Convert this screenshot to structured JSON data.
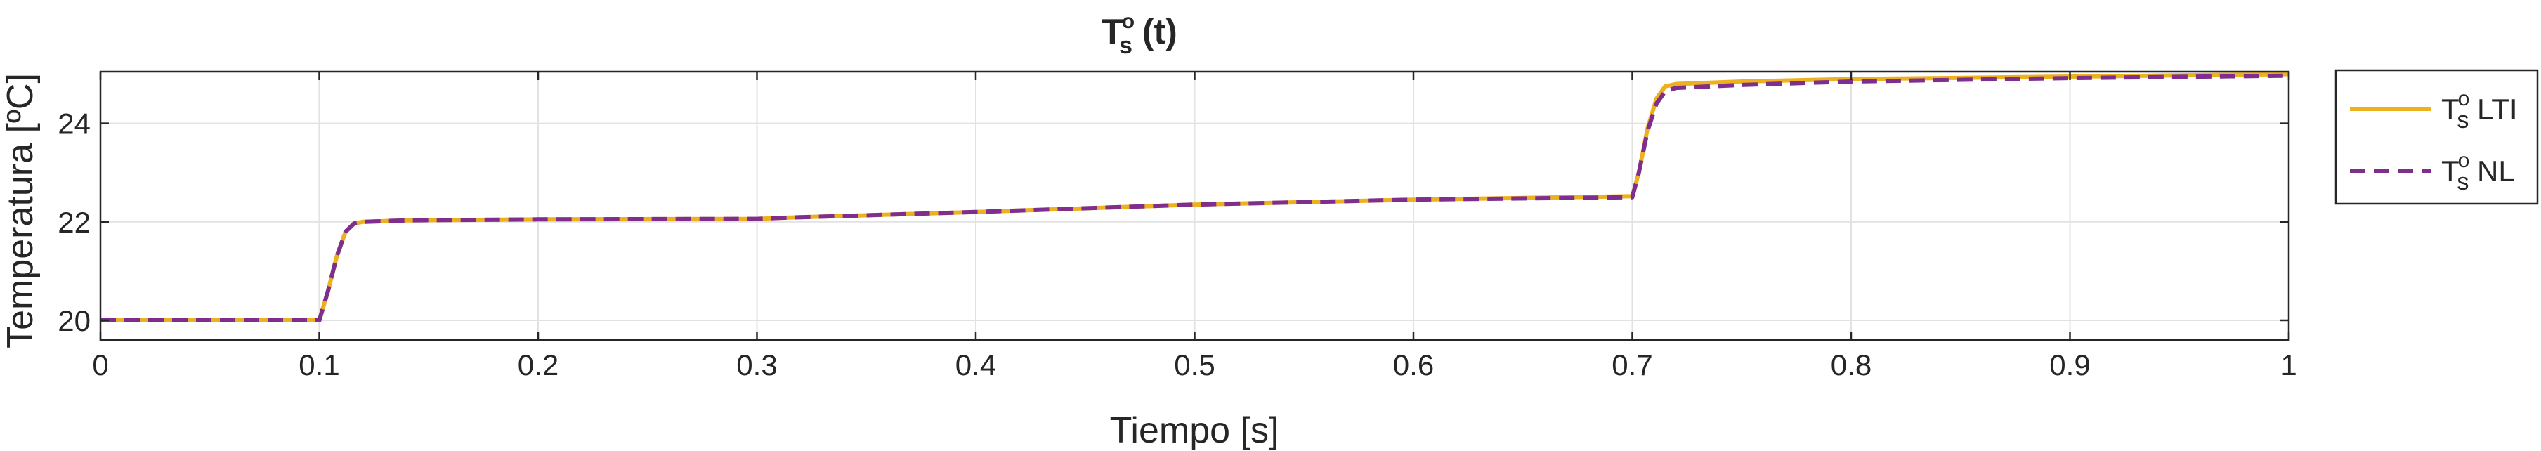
{
  "chart_data": {
    "type": "line",
    "title": {
      "base": "T",
      "sup": "o",
      "sub": "s",
      "rest": " (t)"
    },
    "xlabel": "Tiempo [s]",
    "ylabel": "Temperatura [ºC]",
    "xlim": [
      0,
      1
    ],
    "ylim": [
      19.6,
      25.05
    ],
    "xticks": [
      0,
      0.1,
      0.2,
      0.3,
      0.4,
      0.5,
      0.6,
      0.7,
      0.8,
      0.9,
      1
    ],
    "xtick_labels": [
      "0",
      "0.1",
      "0.2",
      "0.3",
      "0.4",
      "0.5",
      "0.6",
      "0.7",
      "0.8",
      "0.9",
      "1"
    ],
    "yticks": [
      20,
      22,
      24
    ],
    "ytick_labels": [
      "20",
      "22",
      "24"
    ],
    "grid": true,
    "legend_position": "outside-right",
    "series": [
      {
        "legend": {
          "base": "T",
          "sup": "o",
          "sub": "s",
          "rest": " LTI"
        },
        "color": "#EDB120",
        "style": "solid",
        "x": [
          0,
          0.1,
          0.104,
          0.108,
          0.112,
          0.116,
          0.12,
          0.14,
          0.2,
          0.3,
          0.31,
          0.4,
          0.5,
          0.6,
          0.7,
          0.703,
          0.707,
          0.711,
          0.715,
          0.72,
          0.75,
          0.8,
          0.9,
          1.0
        ],
        "y": [
          20.0,
          20.0,
          20.6,
          21.3,
          21.8,
          21.97,
          22.0,
          22.03,
          22.05,
          22.06,
          22.08,
          22.2,
          22.35,
          22.45,
          22.52,
          23.0,
          23.9,
          24.5,
          24.75,
          24.8,
          24.85,
          24.9,
          24.95,
          25.0
        ]
      },
      {
        "legend": {
          "base": "T",
          "sup": "o",
          "sub": "s",
          "rest": " NL"
        },
        "color": "#7E2F8E",
        "style": "dashed",
        "x": [
          0,
          0.1,
          0.104,
          0.108,
          0.112,
          0.116,
          0.12,
          0.14,
          0.2,
          0.3,
          0.31,
          0.4,
          0.5,
          0.6,
          0.7,
          0.703,
          0.707,
          0.711,
          0.715,
          0.72,
          0.75,
          0.8,
          0.9,
          1.0
        ],
        "y": [
          20.0,
          20.0,
          20.6,
          21.3,
          21.8,
          21.97,
          22.0,
          22.03,
          22.05,
          22.06,
          22.08,
          22.2,
          22.35,
          22.45,
          22.5,
          23.0,
          23.85,
          24.4,
          24.65,
          24.72,
          24.78,
          24.85,
          24.92,
          24.97
        ]
      }
    ]
  }
}
